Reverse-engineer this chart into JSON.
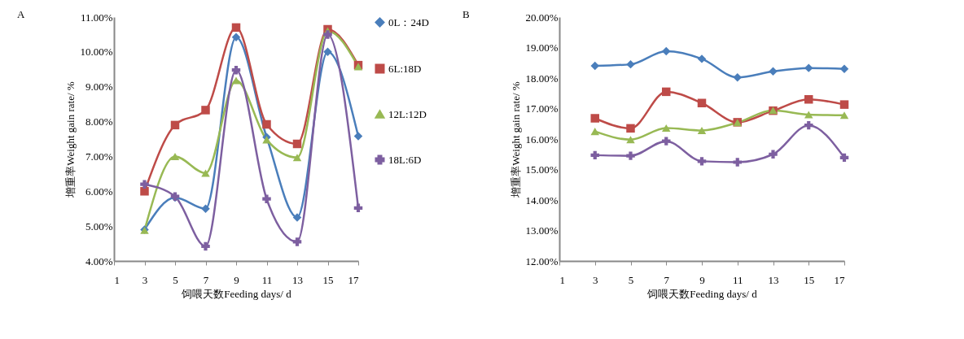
{
  "chart_data": [
    {
      "type": "line",
      "title": "A",
      "xlabel": "饲喂天数Feeding days/ d",
      "ylabel": "增重率Weight gain rate/ %",
      "x": [
        3,
        5,
        7,
        9,
        11,
        13,
        15,
        17
      ],
      "xlim": [
        1,
        17
      ],
      "xticks": [
        1,
        3,
        5,
        7,
        9,
        11,
        13,
        15,
        17
      ],
      "ylim": [
        4,
        11
      ],
      "yticks": [
        {
          "value": 4,
          "label": "4.00%"
        },
        {
          "value": 5,
          "label": "5.00%"
        },
        {
          "value": 6,
          "label": "6.00%"
        },
        {
          "value": 7,
          "label": "7.00%"
        },
        {
          "value": 8,
          "label": "8.00%"
        },
        {
          "value": 9,
          "label": "9.00%"
        },
        {
          "value": 10,
          "label": "10.00%"
        },
        {
          "value": 11,
          "label": "11.00%"
        }
      ],
      "grid": false,
      "legend": "right",
      "series": [
        {
          "name": "0L：24D",
          "color": "#4a7ebb",
          "marker": "diamond",
          "values": [
            4.9,
            5.82,
            5.5,
            10.42,
            7.55,
            5.25,
            10.0,
            7.58
          ]
        },
        {
          "name": "6L:18D",
          "color": "#be4b48",
          "marker": "square",
          "values": [
            6.0,
            7.9,
            8.33,
            10.7,
            7.92,
            7.36,
            10.65,
            9.62
          ]
        },
        {
          "name": "12L:12D",
          "color": "#98b954",
          "marker": "triangle",
          "values": [
            4.88,
            7.0,
            6.52,
            9.18,
            7.48,
            6.97,
            10.6,
            9.58
          ]
        },
        {
          "name": "18L:6D",
          "color": "#7d5fa0",
          "marker": "cross",
          "values": [
            6.2,
            5.85,
            4.42,
            9.48,
            5.78,
            4.55,
            10.5,
            5.52
          ]
        }
      ]
    },
    {
      "type": "line",
      "title": "B",
      "xlabel": "饲喂天数Feeding days/ d",
      "ylabel": "增重率Weight gain rate/ %",
      "x": [
        3,
        5,
        7,
        9,
        11,
        13,
        15,
        17
      ],
      "xlim": [
        1,
        17
      ],
      "xticks": [
        1,
        3,
        5,
        7,
        9,
        11,
        13,
        15,
        17
      ],
      "ylim": [
        12,
        20
      ],
      "yticks": [
        {
          "value": 12,
          "label": "12.00%"
        },
        {
          "value": 13,
          "label": "13.00%"
        },
        {
          "value": 14,
          "label": "14.00%"
        },
        {
          "value": 15,
          "label": "15.00%"
        },
        {
          "value": 16,
          "label": "16.00%"
        },
        {
          "value": 17,
          "label": "17.00%"
        },
        {
          "value": 18,
          "label": "18.00%"
        },
        {
          "value": 19,
          "label": "19.00%"
        },
        {
          "value": 20,
          "label": "20.00%"
        }
      ],
      "grid": false,
      "legend": false,
      "series": [
        {
          "color": "#4a7ebb",
          "marker": "diamond",
          "values": [
            18.4,
            18.45,
            18.88,
            18.63,
            18.02,
            18.22,
            18.33,
            18.3
          ]
        },
        {
          "color": "#be4b48",
          "marker": "square",
          "values": [
            16.68,
            16.35,
            17.55,
            17.18,
            16.55,
            16.93,
            17.3,
            17.13
          ]
        },
        {
          "color": "#98b954",
          "marker": "triangle",
          "values": [
            16.25,
            15.98,
            16.36,
            16.28,
            16.54,
            16.94,
            16.8,
            16.78
          ]
        },
        {
          "color": "#7d5fa0",
          "marker": "cross",
          "values": [
            15.47,
            15.45,
            15.93,
            15.27,
            15.24,
            15.5,
            16.45,
            15.39
          ]
        }
      ]
    }
  ]
}
